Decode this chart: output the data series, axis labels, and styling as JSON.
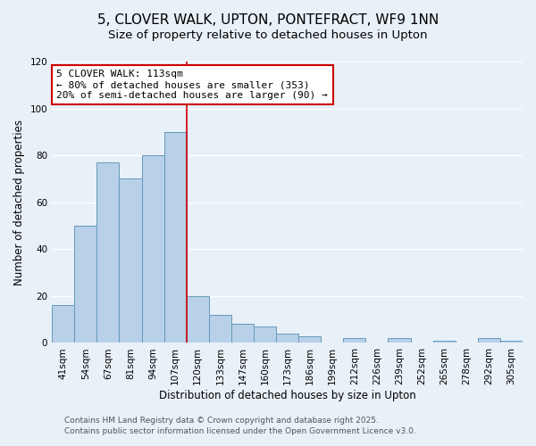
{
  "title": "5, CLOVER WALK, UPTON, PONTEFRACT, WF9 1NN",
  "subtitle": "Size of property relative to detached houses in Upton",
  "xlabel": "Distribution of detached houses by size in Upton",
  "ylabel": "Number of detached properties",
  "bar_labels": [
    "41sqm",
    "54sqm",
    "67sqm",
    "81sqm",
    "94sqm",
    "107sqm",
    "120sqm",
    "133sqm",
    "147sqm",
    "160sqm",
    "173sqm",
    "186sqm",
    "199sqm",
    "212sqm",
    "226sqm",
    "239sqm",
    "252sqm",
    "265sqm",
    "278sqm",
    "292sqm",
    "305sqm"
  ],
  "bar_values": [
    16,
    50,
    77,
    70,
    80,
    90,
    20,
    12,
    8,
    7,
    4,
    3,
    0,
    2,
    0,
    2,
    0,
    1,
    0,
    2,
    1
  ],
  "bar_color": "#b8d0e8",
  "bar_edge_color": "#6699bb",
  "vline_x_index": 5.5,
  "vline_color": "#cc0000",
  "annotation_title": "5 CLOVER WALK: 113sqm",
  "annotation_line1": "← 80% of detached houses are smaller (353)",
  "annotation_line2": "20% of semi-detached houses are larger (90) →",
  "annotation_box_color": "#ffffff",
  "annotation_box_edge_color": "#cc0000",
  "ylim": [
    0,
    120
  ],
  "yticks": [
    0,
    20,
    40,
    60,
    80,
    100,
    120
  ],
  "footer1": "Contains HM Land Registry data © Crown copyright and database right 2025.",
  "footer2": "Contains public sector information licensed under the Open Government Licence v3.0.",
  "background_color": "#e8f0f8",
  "grid_color": "#ffffff",
  "title_fontsize": 11,
  "subtitle_fontsize": 9.5,
  "axis_label_fontsize": 8.5,
  "tick_fontsize": 7.5,
  "annotation_fontsize": 8,
  "footer_fontsize": 6.5
}
